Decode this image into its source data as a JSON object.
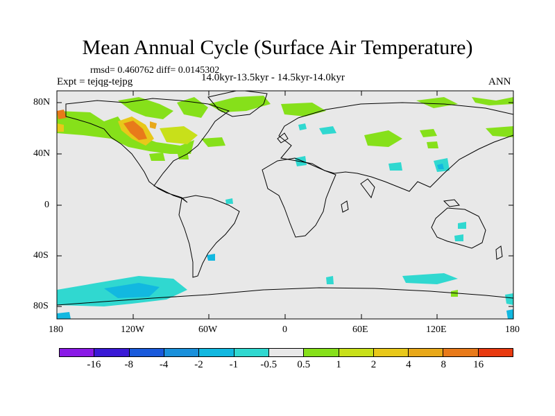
{
  "title": "Mean Annual Cycle (Surface Air Temperature)",
  "stats": "rmsd= 0.460762 diff= 0.0145302",
  "experiment": "Expt = tejqg-tejpg",
  "period": "14.0kyr-13.5kyr - 14.5kyr-14.0kyr",
  "season": "ANN",
  "lat_ticks": [
    "80N",
    "40N",
    "0",
    "40S",
    "80S"
  ],
  "lon_ticks": [
    "180",
    "120W",
    "60W",
    "0",
    "60E",
    "120E",
    "180"
  ],
  "colorbar": {
    "colors": [
      "#8a1ae6",
      "#3a1ad6",
      "#1a5adb",
      "#1a90db",
      "#12b8e0",
      "#30d8d0",
      "#e8e8e8",
      "#86e01a",
      "#c8e01a",
      "#e8c81a",
      "#e8a81a",
      "#e87a1a",
      "#e83a10"
    ],
    "labels": [
      "-16",
      "-8",
      "-4",
      "-2",
      "-1",
      "-0.5",
      "0.5",
      "1",
      "2",
      "4",
      "8",
      "16"
    ]
  },
  "icons": [
    "coastline-map"
  ]
}
